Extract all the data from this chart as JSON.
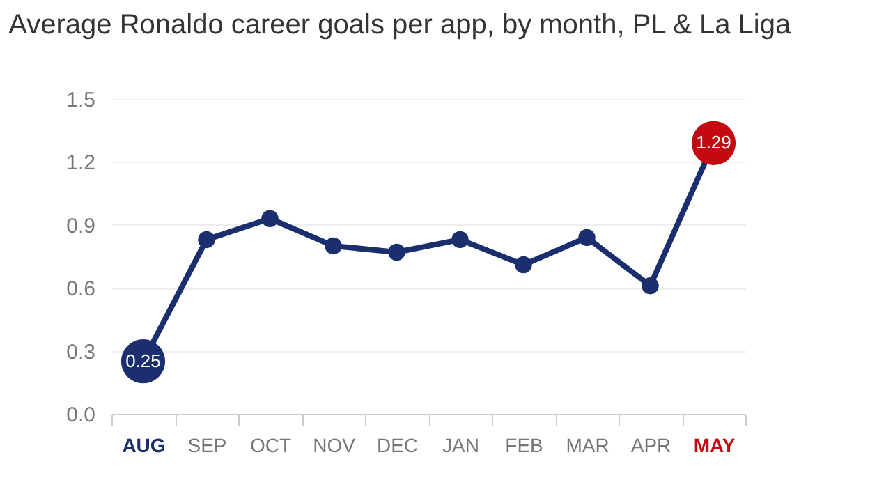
{
  "chart_data": {
    "type": "line",
    "title": "Average Ronaldo career goals per app, by month, PL & La Liga",
    "categories": [
      "AUG",
      "SEP",
      "OCT",
      "NOV",
      "DEC",
      "JAN",
      "FEB",
      "MAR",
      "APR",
      "MAY"
    ],
    "series": [
      {
        "color": "#1b2f6e",
        "values": [
          0.25,
          0.83,
          0.93,
          0.8,
          0.77,
          0.83,
          0.71,
          0.84,
          0.61,
          1.29
        ],
        "colors": [
          "#1b2f6e",
          "#1b2f6e",
          "#1b2f6e",
          "#1b2f6e",
          "#1b2f6e",
          "#1b2f6e",
          "#1b2f6e",
          "#1b2f6e",
          "#1b2f6e",
          "#c40a10"
        ],
        "value_labels": [
          "0.25",
          null,
          null,
          null,
          null,
          null,
          null,
          null,
          null,
          "1.29"
        ]
      }
    ],
    "ylim": [
      0,
      1.5
    ],
    "yticks": [
      "0.0",
      "0.3",
      "0.6",
      "0.9",
      "1.2",
      "1.5"
    ],
    "grid": "y",
    "marker": "circle",
    "line_style": "solid"
  }
}
